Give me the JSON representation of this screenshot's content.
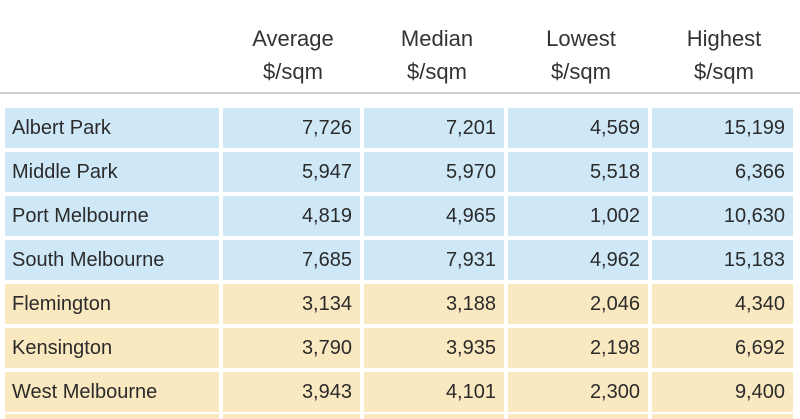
{
  "chart_data": {
    "type": "table",
    "columns": [
      {
        "line1": "Average",
        "line2": "$/sqm"
      },
      {
        "line1": "Median",
        "line2": "$/sqm"
      },
      {
        "line1": "Lowest",
        "line2": "$/sqm"
      },
      {
        "line1": "Highest",
        "line2": "$/sqm"
      }
    ],
    "rows": [
      {
        "suburb": "Albert Park",
        "group": "inner",
        "values": [
          "7,726",
          "7,201",
          "4,569",
          "15,199"
        ]
      },
      {
        "suburb": "Middle Park",
        "group": "inner",
        "values": [
          "5,947",
          "5,970",
          "5,518",
          "6,366"
        ]
      },
      {
        "suburb": "Port Melbourne",
        "group": "inner",
        "values": [
          "4,819",
          "4,965",
          "1,002",
          "10,630"
        ]
      },
      {
        "suburb": "South Melbourne",
        "group": "inner",
        "values": [
          "7,685",
          "7,931",
          "4,962",
          "15,183"
        ]
      },
      {
        "suburb": "Flemington",
        "group": "outer",
        "values": [
          "3,134",
          "3,188",
          "2,046",
          "4,340"
        ]
      },
      {
        "suburb": "Kensington",
        "group": "outer",
        "values": [
          "3,790",
          "3,935",
          "2,198",
          "6,692"
        ]
      },
      {
        "suburb": "West Melbourne",
        "group": "outer",
        "values": [
          "3,943",
          "4,101",
          "2,300",
          "9,400"
        ]
      }
    ]
  },
  "colors": {
    "group_inner": "#cfe8f8",
    "group_outer": "#fae9c0",
    "header_rule": "#cfcfcf"
  }
}
